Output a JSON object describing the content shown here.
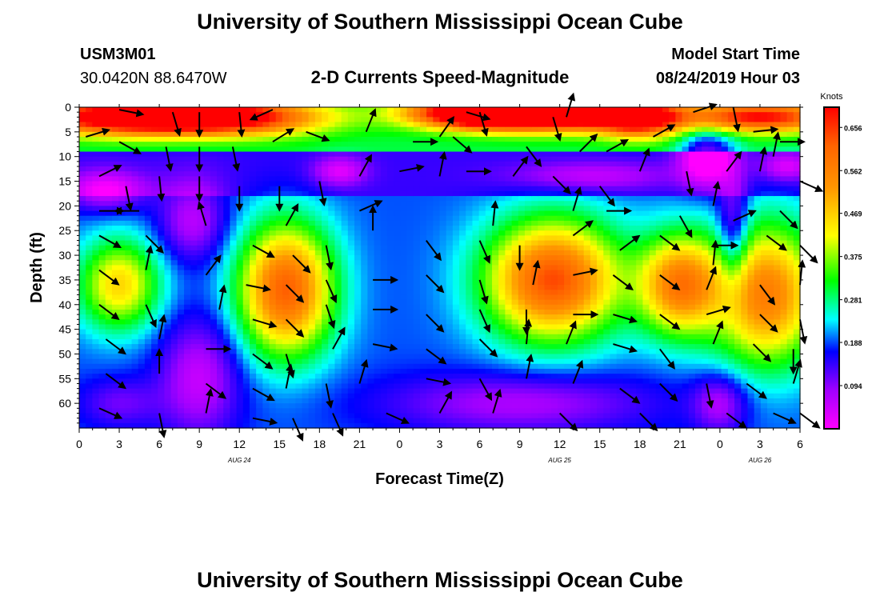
{
  "page": {
    "title_top": "University of Southern Mississippi Ocean Cube",
    "title_bottom": "University of Southern Mississippi Ocean Cube",
    "station_id": "USM3M01",
    "station_location": "30.0420N 88.6470W",
    "chart_title": "2-D Currents Speed-Magnitude",
    "model_start_label": "Model Start Time",
    "model_start_value": "08/24/2019 Hour 03"
  },
  "chart_data": {
    "type": "heatmap",
    "title": "2-D Currents Speed-Magnitude",
    "xlabel": "Forecast Time(Z)",
    "ylabel": "Depth (ft)",
    "x_unit": "hours",
    "x_range": [
      0,
      54
    ],
    "y_range": [
      0,
      65
    ],
    "y_inverted": true,
    "x_ticks": [
      "0",
      "3",
      "6",
      "9",
      "12",
      "15",
      "18",
      "21",
      "0",
      "3",
      "6",
      "9",
      "12",
      "15",
      "18",
      "21",
      "0",
      "3",
      "6"
    ],
    "y_ticks": [
      0,
      5,
      10,
      15,
      20,
      25,
      30,
      35,
      40,
      45,
      50,
      55,
      60
    ],
    "date_labels": [
      {
        "text": "AUG 24",
        "hour": 12
      },
      {
        "text": "AUG 25",
        "hour": 36
      },
      {
        "text": "AUG 26",
        "hour": 51
      }
    ],
    "colorbar": {
      "title": "Knots",
      "min": 0,
      "max": 0.7,
      "ticks": [
        "0.656",
        "0.562",
        "0.469",
        "0.375",
        "0.281",
        "0.188",
        "0.094"
      ]
    },
    "speed_blobs": [
      {
        "hour": 3,
        "depth": 2,
        "rh": 7,
        "rd": 3.5,
        "v": 0.45
      },
      {
        "hour": 11,
        "depth": 2,
        "rh": 7,
        "rd": 3.5,
        "v": 0.45
      },
      {
        "hour": 30,
        "depth": 1,
        "rh": 5,
        "rd": 3,
        "v": 0.55
      },
      {
        "hour": 36,
        "depth": 2,
        "rh": 7,
        "rd": 3,
        "v": 0.45
      },
      {
        "hour": 42,
        "depth": 2,
        "rh": 3,
        "rd": 4,
        "v": 0.35
      },
      {
        "hour": 51,
        "depth": 2,
        "rh": 6,
        "rd": 3,
        "v": 0.4
      },
      {
        "hour": 3,
        "depth": 36,
        "rh": 3,
        "rd": 9,
        "v": 0.27
      },
      {
        "hour": 15.5,
        "depth": 37,
        "rh": 3.5,
        "rd": 13,
        "v": 0.43
      },
      {
        "hour": 35.5,
        "depth": 35,
        "rh": 5,
        "rd": 12,
        "v": 0.45
      },
      {
        "hour": 45,
        "depth": 36,
        "rh": 3,
        "rd": 10,
        "v": 0.37
      },
      {
        "hour": 51.5,
        "depth": 38,
        "rh": 4,
        "rd": 14,
        "v": 0.38
      },
      {
        "hour": 2,
        "depth": 17,
        "rh": 3,
        "rd": 4,
        "v": -0.15
      },
      {
        "hour": 8.5,
        "depth": 23,
        "rh": 2.5,
        "rd": 8,
        "v": -0.13
      },
      {
        "hour": 19.5,
        "depth": 13,
        "rh": 2,
        "rd": 3,
        "v": -0.12
      },
      {
        "hour": 38,
        "depth": 14,
        "rh": 6,
        "rd": 3,
        "v": -0.1
      },
      {
        "hour": 47,
        "depth": 10,
        "rh": 2,
        "rd": 6,
        "v": -0.2
      },
      {
        "hour": 49,
        "depth": 26,
        "rh": 1.2,
        "rd": 12,
        "v": -0.15
      },
      {
        "hour": 53,
        "depth": 12,
        "rh": 2,
        "rd": 3,
        "v": -0.12
      },
      {
        "hour": 9,
        "depth": 55,
        "rh": 3,
        "rd": 12,
        "v": -0.14
      },
      {
        "hour": 33,
        "depth": 60,
        "rh": 10,
        "rd": 6,
        "v": -0.12
      },
      {
        "hour": 48,
        "depth": 60,
        "rh": 2,
        "rd": 6,
        "v": -0.12
      },
      {
        "hour": 3,
        "depth": 60,
        "rh": 3,
        "rd": 5,
        "v": -0.08
      }
    ],
    "vectors": [
      {
        "hour": 3,
        "depth": 0.5,
        "u": 1,
        "v": -0.2
      },
      {
        "hour": 7,
        "depth": 1,
        "u": 0.3,
        "v": -1
      },
      {
        "hour": 9,
        "depth": 1,
        "u": 0,
        "v": -1
      },
      {
        "hour": 12,
        "depth": 1,
        "u": 0.1,
        "v": -1
      },
      {
        "hour": 14.5,
        "depth": 0.5,
        "u": -0.9,
        "v": -0.4
      },
      {
        "hour": 0.5,
        "depth": 6,
        "u": 1,
        "v": 0.3
      },
      {
        "hour": 3,
        "depth": 7,
        "u": 0.9,
        "v": -0.5
      },
      {
        "hour": 6.5,
        "depth": 8,
        "u": 0.2,
        "v": -1
      },
      {
        "hour": 9,
        "depth": 8,
        "u": 0,
        "v": -1
      },
      {
        "hour": 11.5,
        "depth": 8,
        "u": 0.2,
        "v": -1
      },
      {
        "hour": 14.5,
        "depth": 7,
        "u": 0.8,
        "v": 0.5
      },
      {
        "hour": 17,
        "depth": 5,
        "u": 0.8,
        "v": -0.3
      },
      {
        "hour": 21.5,
        "depth": 5,
        "u": 0.4,
        "v": 1
      },
      {
        "hour": 25,
        "depth": 7,
        "u": 1,
        "v": 0
      },
      {
        "hour": 28,
        "depth": 6,
        "u": 0.7,
        "v": -0.6
      },
      {
        "hour": 29,
        "depth": 1,
        "u": 1,
        "v": -0.3
      },
      {
        "hour": 30,
        "depth": 1,
        "u": 0.3,
        "v": -1
      },
      {
        "hour": 35.5,
        "depth": 2,
        "u": 0.3,
        "v": -1
      },
      {
        "hour": 36.5,
        "depth": 2,
        "u": 0.3,
        "v": 1
      },
      {
        "hour": 27,
        "depth": 6,
        "u": 0.5,
        "v": 0.7
      },
      {
        "hour": 33.5,
        "depth": 8,
        "u": 0.6,
        "v": -0.8
      },
      {
        "hour": 37.5,
        "depth": 9,
        "u": 0.7,
        "v": 0.7
      },
      {
        "hour": 39.5,
        "depth": 9,
        "u": 0.9,
        "v": 0.5
      },
      {
        "hour": 43,
        "depth": 6,
        "u": 0.9,
        "v": 0.5
      },
      {
        "hour": 46,
        "depth": 1,
        "u": 0.9,
        "v": 0.3
      },
      {
        "hour": 49,
        "depth": 0,
        "u": 0.2,
        "v": -1
      },
      {
        "hour": 50.5,
        "depth": 5,
        "u": 0.9,
        "v": 0.1
      },
      {
        "hour": 52.5,
        "depth": 7,
        "u": 1,
        "v": 0
      },
      {
        "hour": 1.5,
        "depth": 14,
        "u": 1,
        "v": 0.5
      },
      {
        "hour": 3.5,
        "depth": 16,
        "u": 0.2,
        "v": -1
      },
      {
        "hour": 6,
        "depth": 14,
        "u": 0.1,
        "v": -1
      },
      {
        "hour": 9,
        "depth": 14,
        "u": 0,
        "v": -1
      },
      {
        "hour": 12,
        "depth": 16,
        "u": 0,
        "v": -1
      },
      {
        "hour": 15,
        "depth": 16,
        "u": 0,
        "v": -1
      },
      {
        "hour": 18,
        "depth": 15,
        "u": 0.2,
        "v": -1
      },
      {
        "hour": 21,
        "depth": 14,
        "u": 0.5,
        "v": 0.9
      },
      {
        "hour": 24,
        "depth": 13,
        "u": 1,
        "v": 0.2
      },
      {
        "hour": 27,
        "depth": 14,
        "u": 0.2,
        "v": 1
      },
      {
        "hour": 29,
        "depth": 13,
        "u": 1,
        "v": 0
      },
      {
        "hour": 32.5,
        "depth": 14,
        "u": 0.6,
        "v": 0.8
      },
      {
        "hour": 35.5,
        "depth": 14,
        "u": 0.7,
        "v": -0.7
      },
      {
        "hour": 39,
        "depth": 16,
        "u": 0.6,
        "v": -0.8
      },
      {
        "hour": 42,
        "depth": 13,
        "u": 0.4,
        "v": 1
      },
      {
        "hour": 45.5,
        "depth": 13,
        "u": 0.2,
        "v": -1
      },
      {
        "hour": 48.5,
        "depth": 13,
        "u": 0.6,
        "v": 0.8
      },
      {
        "hour": 51,
        "depth": 13,
        "u": 0.2,
        "v": 1
      },
      {
        "hour": 52,
        "depth": 10,
        "u": 0.2,
        "v": 1
      },
      {
        "hour": 54,
        "depth": 15,
        "u": 0.9,
        "v": -0.4
      },
      {
        "hour": 1.5,
        "depth": 21,
        "u": 1,
        "v": 0
      },
      {
        "hour": 4.5,
        "depth": 21,
        "u": -1,
        "v": 0
      },
      {
        "hour": 9.5,
        "depth": 24,
        "u": -0.3,
        "v": 1
      },
      {
        "hour": 15.5,
        "depth": 24,
        "u": 0.5,
        "v": 0.9
      },
      {
        "hour": 21,
        "depth": 21,
        "u": 0.9,
        "v": 0.4
      },
      {
        "hour": 22,
        "depth": 25,
        "u": 0,
        "v": 1
      },
      {
        "hour": 31,
        "depth": 24,
        "u": 0.1,
        "v": 1
      },
      {
        "hour": 37,
        "depth": 21,
        "u": 0.3,
        "v": 1
      },
      {
        "hour": 39.5,
        "depth": 21,
        "u": 1,
        "v": 0
      },
      {
        "hour": 45,
        "depth": 22,
        "u": 0.5,
        "v": -0.9
      },
      {
        "hour": 47.5,
        "depth": 20,
        "u": 0.2,
        "v": 1
      },
      {
        "hour": 49,
        "depth": 23,
        "u": 0.9,
        "v": 0.4
      },
      {
        "hour": 52.5,
        "depth": 21,
        "u": 0.7,
        "v": -0.7
      },
      {
        "hour": 1.5,
        "depth": 26,
        "u": 0.9,
        "v": -0.5
      },
      {
        "hour": 5,
        "depth": 26,
        "u": 0.7,
        "v": -0.7
      },
      {
        "hour": 13,
        "depth": 28,
        "u": 0.9,
        "v": -0.5
      },
      {
        "hour": 16,
        "depth": 30,
        "u": 0.7,
        "v": -0.7
      },
      {
        "hour": 18.5,
        "depth": 28,
        "u": 0.2,
        "v": -1
      },
      {
        "hour": 26,
        "depth": 27,
        "u": 0.6,
        "v": -0.8
      },
      {
        "hour": 30,
        "depth": 27,
        "u": 0.4,
        "v": -0.9
      },
      {
        "hour": 33,
        "depth": 28,
        "u": 0,
        "v": -1
      },
      {
        "hour": 37,
        "depth": 26,
        "u": 0.8,
        "v": 0.6
      },
      {
        "hour": 40.5,
        "depth": 29,
        "u": 0.8,
        "v": 0.6
      },
      {
        "hour": 43.5,
        "depth": 26,
        "u": 0.8,
        "v": -0.6
      },
      {
        "hour": 47.5,
        "depth": 28,
        "u": 0.9,
        "v": 0
      },
      {
        "hour": 47.5,
        "depth": 32,
        "u": 0.1,
        "v": 1
      },
      {
        "hour": 51.5,
        "depth": 26,
        "u": 0.8,
        "v": -0.6
      },
      {
        "hour": 54,
        "depth": 28,
        "u": 0.7,
        "v": -0.7
      },
      {
        "hour": 1.5,
        "depth": 33,
        "u": 0.8,
        "v": -0.6
      },
      {
        "hour": 5,
        "depth": 33,
        "u": 0.2,
        "v": 1
      },
      {
        "hour": 9.5,
        "depth": 34,
        "u": 0.6,
        "v": 0.8
      },
      {
        "hour": 12.5,
        "depth": 36,
        "u": 1,
        "v": -0.2
      },
      {
        "hour": 15.5,
        "depth": 36,
        "u": 0.7,
        "v": -0.7
      },
      {
        "hour": 18.5,
        "depth": 35,
        "u": 0.4,
        "v": -0.9
      },
      {
        "hour": 22,
        "depth": 35,
        "u": 1,
        "v": 0
      },
      {
        "hour": 26,
        "depth": 34,
        "u": 0.7,
        "v": -0.7
      },
      {
        "hour": 30,
        "depth": 35,
        "u": 0.3,
        "v": -1
      },
      {
        "hour": 34,
        "depth": 36,
        "u": 0.2,
        "v": 1
      },
      {
        "hour": 37,
        "depth": 34,
        "u": 1,
        "v": 0.2
      },
      {
        "hour": 40,
        "depth": 34,
        "u": 0.8,
        "v": -0.6
      },
      {
        "hour": 43.5,
        "depth": 34,
        "u": 0.8,
        "v": -0.6
      },
      {
        "hour": 47,
        "depth": 37,
        "u": 0.4,
        "v": 1
      },
      {
        "hour": 51,
        "depth": 36,
        "u": 0.6,
        "v": -0.8
      },
      {
        "hour": 54,
        "depth": 36,
        "u": 0.1,
        "v": 1
      },
      {
        "hour": 1.5,
        "depth": 40,
        "u": 0.8,
        "v": -0.6
      },
      {
        "hour": 5,
        "depth": 40,
        "u": 0.4,
        "v": -0.9
      },
      {
        "hour": 10.5,
        "depth": 41,
        "u": 0.2,
        "v": 1
      },
      {
        "hour": 13,
        "depth": 43,
        "u": 1,
        "v": -0.3
      },
      {
        "hour": 15.5,
        "depth": 43,
        "u": 0.7,
        "v": -0.7
      },
      {
        "hour": 18.5,
        "depth": 40,
        "u": 0.3,
        "v": -0.9
      },
      {
        "hour": 22,
        "depth": 41,
        "u": 1,
        "v": 0
      },
      {
        "hour": 26,
        "depth": 42,
        "u": 0.7,
        "v": -0.7
      },
      {
        "hour": 30,
        "depth": 41,
        "u": 0.4,
        "v": -0.9
      },
      {
        "hour": 33.5,
        "depth": 41,
        "u": 0,
        "v": -1
      },
      {
        "hour": 37,
        "depth": 42,
        "u": 1,
        "v": 0
      },
      {
        "hour": 40,
        "depth": 42,
        "u": 1,
        "v": -0.3
      },
      {
        "hour": 43.5,
        "depth": 42,
        "u": 0.8,
        "v": -0.6
      },
      {
        "hour": 47,
        "depth": 42,
        "u": 1,
        "v": 0.3
      },
      {
        "hour": 51,
        "depth": 42,
        "u": 0.7,
        "v": -0.7
      },
      {
        "hour": 54,
        "depth": 43,
        "u": 0.2,
        "v": -1
      },
      {
        "hour": 2,
        "depth": 47,
        "u": 0.8,
        "v": -0.6
      },
      {
        "hour": 6,
        "depth": 47,
        "u": 0.2,
        "v": 1
      },
      {
        "hour": 9.5,
        "depth": 49,
        "u": 1,
        "v": 0
      },
      {
        "hour": 13,
        "depth": 50,
        "u": 0.8,
        "v": -0.6
      },
      {
        "hour": 15.5,
        "depth": 50,
        "u": 0.3,
        "v": -1
      },
      {
        "hour": 19,
        "depth": 49,
        "u": 0.5,
        "v": 0.9
      },
      {
        "hour": 22,
        "depth": 48,
        "u": 1,
        "v": -0.2
      },
      {
        "hour": 26,
        "depth": 49,
        "u": 0.8,
        "v": -0.6
      },
      {
        "hour": 30,
        "depth": 47,
        "u": 0.7,
        "v": -0.7
      },
      {
        "hour": 33.5,
        "depth": 48,
        "u": 0.1,
        "v": 1
      },
      {
        "hour": 36.5,
        "depth": 48,
        "u": 0.4,
        "v": 1
      },
      {
        "hour": 40,
        "depth": 48,
        "u": 1,
        "v": -0.3
      },
      {
        "hour": 43.5,
        "depth": 49,
        "u": 0.6,
        "v": -0.8
      },
      {
        "hour": 47.5,
        "depth": 48,
        "u": 0.4,
        "v": 1
      },
      {
        "hour": 50.5,
        "depth": 48,
        "u": 0.7,
        "v": -0.7
      },
      {
        "hour": 53.5,
        "depth": 49,
        "u": 0,
        "v": -1
      },
      {
        "hour": 2,
        "depth": 54,
        "u": 0.8,
        "v": -0.6
      },
      {
        "hour": 6,
        "depth": 54,
        "u": 0,
        "v": 1
      },
      {
        "hour": 9.5,
        "depth": 56,
        "u": 0.8,
        "v": -0.6
      },
      {
        "hour": 13,
        "depth": 57,
        "u": 0.9,
        "v": -0.5
      },
      {
        "hour": 15.5,
        "depth": 57,
        "u": 0.2,
        "v": 1
      },
      {
        "hour": 18.5,
        "depth": 56,
        "u": 0.2,
        "v": -1
      },
      {
        "hour": 21,
        "depth": 56,
        "u": 0.3,
        "v": 1
      },
      {
        "hour": 26,
        "depth": 55,
        "u": 1,
        "v": -0.2
      },
      {
        "hour": 30,
        "depth": 55,
        "u": 0.5,
        "v": -0.9
      },
      {
        "hour": 33.5,
        "depth": 55,
        "u": 0.2,
        "v": 1
      },
      {
        "hour": 37,
        "depth": 56,
        "u": 0.4,
        "v": 1
      },
      {
        "hour": 40.5,
        "depth": 57,
        "u": 0.8,
        "v": -0.6
      },
      {
        "hour": 43.5,
        "depth": 56,
        "u": 0.7,
        "v": -0.7
      },
      {
        "hour": 47,
        "depth": 56,
        "u": 0.2,
        "v": -1
      },
      {
        "hour": 50,
        "depth": 56,
        "u": 0.8,
        "v": -0.6
      },
      {
        "hour": 53.5,
        "depth": 56,
        "u": 0.3,
        "v": 1
      },
      {
        "hour": 1.5,
        "depth": 61,
        "u": 0.9,
        "v": -0.4
      },
      {
        "hour": 6,
        "depth": 62,
        "u": 0.2,
        "v": -1
      },
      {
        "hour": 9.5,
        "depth": 62,
        "u": 0.2,
        "v": 1
      },
      {
        "hour": 13,
        "depth": 63,
        "u": 1,
        "v": -0.2
      },
      {
        "hour": 16,
        "depth": 63,
        "u": 0.4,
        "v": -0.9
      },
      {
        "hour": 19,
        "depth": 62,
        "u": 0.4,
        "v": -0.9
      },
      {
        "hour": 23,
        "depth": 62,
        "u": 0.9,
        "v": -0.4
      },
      {
        "hour": 27,
        "depth": 62,
        "u": 0.5,
        "v": 0.9
      },
      {
        "hour": 31,
        "depth": 62,
        "u": 0.3,
        "v": 1
      },
      {
        "hour": 36,
        "depth": 62,
        "u": 0.7,
        "v": -0.7
      },
      {
        "hour": 42,
        "depth": 62,
        "u": 0.7,
        "v": -0.7
      },
      {
        "hour": 48.5,
        "depth": 62,
        "u": 0.8,
        "v": -0.6
      },
      {
        "hour": 52,
        "depth": 62,
        "u": 0.9,
        "v": -0.4
      },
      {
        "hour": 54,
        "depth": 62,
        "u": 0.8,
        "v": -0.6
      }
    ]
  }
}
